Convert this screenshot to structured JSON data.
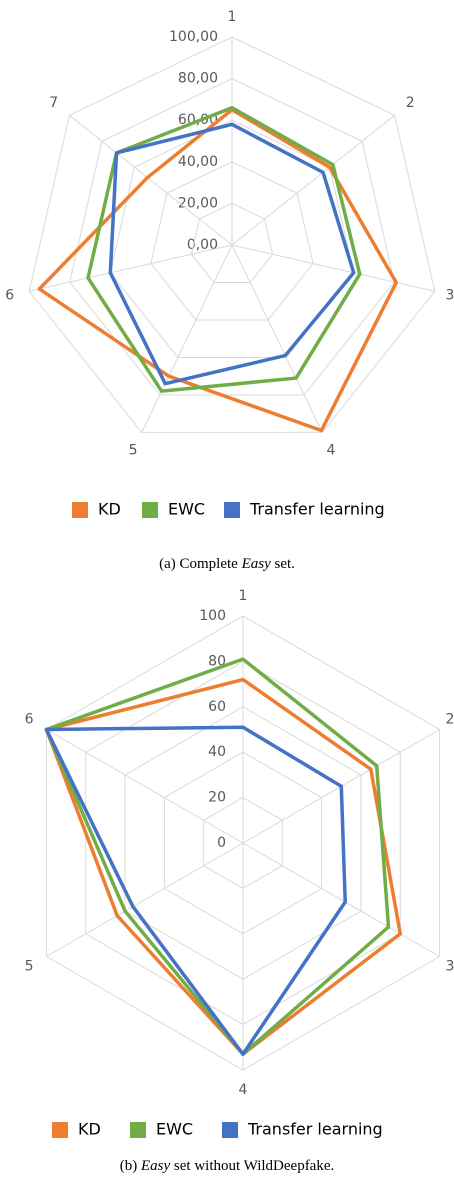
{
  "chart_data": [
    {
      "type": "radar",
      "categories": [
        "1",
        "2",
        "3",
        "4",
        "5",
        "6",
        "7"
      ],
      "ylim": [
        0,
        100
      ],
      "yticks": [
        {
          "value": 0,
          "label": "0,00"
        },
        {
          "value": 20,
          "label": "20,00"
        },
        {
          "value": 40,
          "label": "40,00"
        },
        {
          "value": 60,
          "label": "60,00"
        },
        {
          "value": 80,
          "label": "80,00"
        },
        {
          "value": 100,
          "label": "100,00"
        }
      ],
      "grid": true,
      "legend": "bottom",
      "series": [
        {
          "name": "KD",
          "color": "#ed7d31",
          "values": [
            65,
            60,
            81,
            99,
            70,
            95,
            52
          ]
        },
        {
          "name": "EWC",
          "color": "#70ad47",
          "values": [
            66,
            62,
            63,
            71,
            78,
            71,
            71
          ]
        },
        {
          "name": "Transfer learning",
          "color": "#4472c4",
          "values": [
            58,
            56,
            60,
            59,
            74,
            60,
            71
          ]
        }
      ],
      "caption": [
        "(a) Complete ",
        "Easy",
        " set."
      ]
    },
    {
      "type": "radar",
      "categories": [
        "1",
        "2",
        "3",
        "4",
        "5",
        "6"
      ],
      "ylim": [
        0,
        100
      ],
      "yticks": [
        0,
        20,
        40,
        60,
        80,
        100
      ],
      "grid": true,
      "legend": "bottom",
      "series": [
        {
          "name": "KD",
          "color": "#ed7d31",
          "values": [
            72,
            65,
            80,
            93,
            64,
            100
          ]
        },
        {
          "name": "EWC",
          "color": "#70ad47",
          "values": [
            81,
            68,
            74,
            93,
            60,
            100
          ]
        },
        {
          "name": "Transfer learning",
          "color": "#4472c4",
          "values": [
            51,
            50,
            52,
            93,
            56,
            100
          ]
        }
      ],
      "caption": [
        "(b) ",
        "Easy",
        " set without WildDeepfake."
      ]
    }
  ]
}
